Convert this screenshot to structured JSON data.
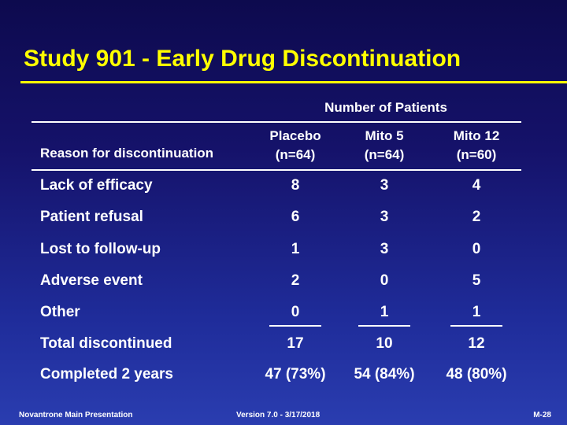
{
  "title": "Study 901 - Early Drug Discontinuation",
  "table": {
    "group_header": "Number of Patients",
    "row_header": "Reason for discontinuation",
    "columns": [
      {
        "name": "Placebo",
        "n": "(n=64)"
      },
      {
        "name": "Mito 5",
        "n": "(n=64)"
      },
      {
        "name": "Mito 12",
        "n": "(n=60)"
      }
    ],
    "rows": [
      {
        "label": "Lack of efficacy",
        "values": [
          "8",
          "3",
          "4"
        ]
      },
      {
        "label": "Patient refusal",
        "values": [
          "6",
          "3",
          "2"
        ]
      },
      {
        "label": "Lost to follow-up",
        "values": [
          "1",
          "3",
          "0"
        ]
      },
      {
        "label": "Adverse event",
        "values": [
          "2",
          "0",
          "5"
        ]
      },
      {
        "label": "Other",
        "values": [
          "0",
          "1",
          "1"
        ]
      }
    ],
    "total": {
      "label": "Total discontinued",
      "values": [
        "17",
        "10",
        "12"
      ]
    },
    "completed": {
      "label": "Completed 2 years",
      "values": [
        "47 (73%)",
        "54 (84%)",
        "48 (80%)"
      ]
    }
  },
  "footer": {
    "left": "Novantrone Main Presentation",
    "center": "Version 7.0 - 3/17/2018",
    "right": "M-28"
  },
  "colors": {
    "title": "#ffff00",
    "text": "#ffffff",
    "background": "#15126a"
  }
}
